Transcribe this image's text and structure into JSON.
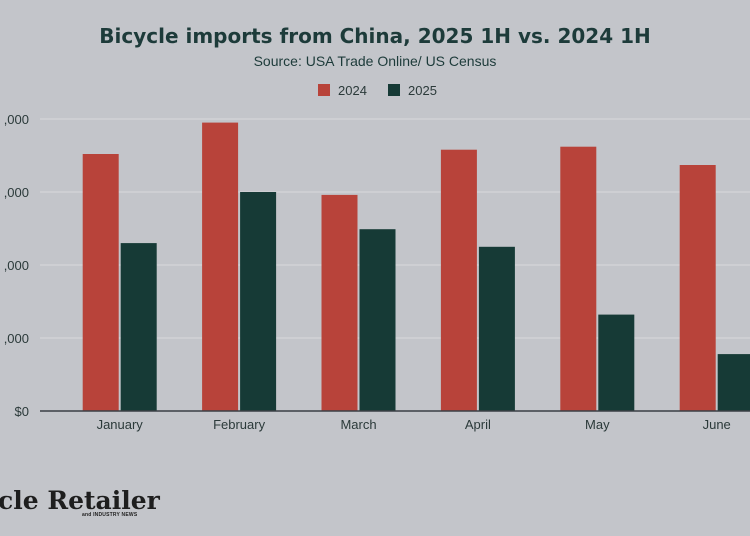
{
  "chart_data": {
    "type": "bar",
    "title": "Bicycle imports from China, 2025 1H vs. 2024 1H",
    "subtitle": "Source: USA Trade Online/ US Census",
    "categories": [
      "January",
      "February",
      "March",
      "April",
      "May",
      "June"
    ],
    "series": [
      {
        "name": "2024",
        "color": "#b8433a",
        "values": [
          176000,
          197500,
          148000,
          179000,
          181000,
          168500
        ]
      },
      {
        "name": "2025",
        "color": "#163a36",
        "values": [
          115000,
          150000,
          124500,
          112500,
          66000,
          39000
        ]
      }
    ],
    "ylim": [
      0,
      200000
    ],
    "yticks": [
      {
        "value": 0,
        "label": "$0"
      },
      {
        "value": 50000,
        "label": ",000"
      },
      {
        "value": 100000,
        "label": ",000"
      },
      {
        "value": 150000,
        "label": ",000"
      },
      {
        "value": 200000,
        "label": ",000"
      }
    ],
    "xlabel": "",
    "ylabel": "",
    "grid": true,
    "legend_position": "top-center"
  },
  "branding": {
    "logo_main": "cle Retailer",
    "logo_sub": "and INDUSTRY NEWS"
  }
}
